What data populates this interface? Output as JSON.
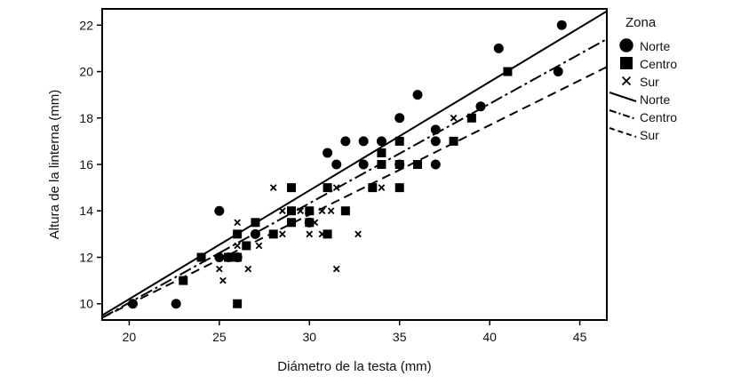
{
  "chart_data": {
    "type": "scatter",
    "xlabel": "Diámetro de la testa (mm)",
    "ylabel": "Altura de la linterna (mm)",
    "xlim": [
      18.5,
      46.5
    ],
    "ylim": [
      9.3,
      22.7
    ],
    "xticks": [
      20,
      25,
      30,
      35,
      40,
      45
    ],
    "yticks": [
      10,
      12,
      14,
      16,
      18,
      20,
      22
    ],
    "grid": false,
    "legend_title": "Zona",
    "legend_position": "right",
    "legend_lines_label": [
      "Norte",
      "Centro",
      "Sur"
    ],
    "series": [
      {
        "name": "Norte",
        "marker": "circle",
        "points": [
          [
            20.2,
            10
          ],
          [
            22.6,
            10
          ],
          [
            25.0,
            14
          ],
          [
            25.0,
            12
          ],
          [
            25.5,
            12
          ],
          [
            26.0,
            12
          ],
          [
            27.0,
            13
          ],
          [
            30.0,
            13.5
          ],
          [
            31.0,
            16.5
          ],
          [
            31.5,
            16
          ],
          [
            32.0,
            17
          ],
          [
            33.0,
            17
          ],
          [
            33.0,
            16
          ],
          [
            34.0,
            17
          ],
          [
            35.0,
            18
          ],
          [
            35.0,
            16
          ],
          [
            36.0,
            19
          ],
          [
            37.0,
            17.5
          ],
          [
            37.0,
            17
          ],
          [
            37.0,
            16
          ],
          [
            39.5,
            18.5
          ],
          [
            40.5,
            21
          ],
          [
            43.8,
            20
          ],
          [
            44.0,
            22
          ]
        ],
        "fit": [
          [
            18.5,
            9.5
          ],
          [
            46.5,
            22.6
          ]
        ]
      },
      {
        "name": "Centro",
        "marker": "square",
        "points": [
          [
            23.0,
            11
          ],
          [
            24.0,
            12
          ],
          [
            25.5,
            12
          ],
          [
            26.0,
            12
          ],
          [
            26.0,
            13
          ],
          [
            26.0,
            10
          ],
          [
            26.5,
            12.5
          ],
          [
            27.0,
            13.5
          ],
          [
            28.0,
            13
          ],
          [
            29.0,
            15
          ],
          [
            29.0,
            14
          ],
          [
            29.0,
            13.5
          ],
          [
            30.0,
            14
          ],
          [
            30.0,
            13.5
          ],
          [
            31.0,
            15
          ],
          [
            31.0,
            13
          ],
          [
            32.0,
            14
          ],
          [
            33.5,
            15
          ],
          [
            34.0,
            16.5
          ],
          [
            34.0,
            16
          ],
          [
            35.0,
            17
          ],
          [
            35.0,
            16
          ],
          [
            35.0,
            15
          ],
          [
            36.0,
            16
          ],
          [
            38.0,
            17
          ],
          [
            39.0,
            18
          ],
          [
            41.0,
            20
          ]
        ],
        "fit": [
          [
            18.5,
            9.4
          ],
          [
            46.5,
            21.4
          ]
        ]
      },
      {
        "name": "Sur",
        "marker": "x",
        "points": [
          [
            25.0,
            11.5
          ],
          [
            25.2,
            11
          ],
          [
            26.0,
            13.5
          ],
          [
            26.0,
            12.5
          ],
          [
            26.5,
            12.5
          ],
          [
            26.6,
            11.5
          ],
          [
            27.0,
            13
          ],
          [
            27.2,
            12.5
          ],
          [
            28.0,
            15
          ],
          [
            28.5,
            13
          ],
          [
            28.5,
            14
          ],
          [
            29.5,
            14
          ],
          [
            30.0,
            13
          ],
          [
            30.0,
            14
          ],
          [
            30.3,
            13.5
          ],
          [
            30.7,
            14
          ],
          [
            30.7,
            13
          ],
          [
            31.2,
            14
          ],
          [
            31.5,
            15
          ],
          [
            31.5,
            11.5
          ],
          [
            32.0,
            14
          ],
          [
            32.7,
            13
          ],
          [
            34.0,
            15
          ],
          [
            38.0,
            18
          ]
        ],
        "fit": [
          [
            18.5,
            9.4
          ],
          [
            46.5,
            20.2
          ]
        ]
      }
    ]
  }
}
